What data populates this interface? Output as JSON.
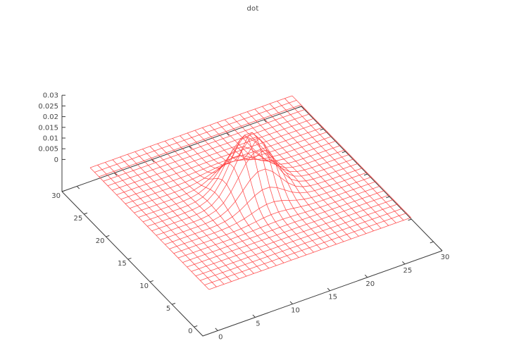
{
  "chart_data": {
    "type": "surface",
    "style": "wireframe-mesh",
    "title": "dot",
    "x_tick_labels": [
      "0",
      "5",
      "10",
      "15",
      "20",
      "25",
      "30"
    ],
    "x_tick_values": [
      0,
      5,
      10,
      15,
      20,
      25,
      30
    ],
    "y_tick_labels": [
      "0",
      "5",
      "10",
      "15",
      "20",
      "25",
      "30"
    ],
    "y_tick_values": [
      0,
      5,
      10,
      15,
      20,
      25,
      30
    ],
    "z_tick_labels": [
      "0",
      "0.005",
      "0.01",
      "0.015",
      "0.02",
      "0.025",
      "0.03"
    ],
    "z_tick_values": [
      0,
      0.005,
      0.01,
      0.015,
      0.02,
      0.025,
      0.03
    ],
    "xlim": [
      -2,
      30
    ],
    "ylim": [
      -2,
      30
    ],
    "zlim": [
      0,
      0.03
    ],
    "legend": null,
    "grid_on": false,
    "mesh_color": "#ff3b3b",
    "axis_color": "#3a3a3a",
    "label_color": "#464646",
    "surface": {
      "kind": "gaussian2d",
      "formula": "z(x,y) = peak * exp(-((x-cx)^2 + (y-cy)^2) / (2*sigma^2))",
      "cx": 13.5,
      "cy": 13.5,
      "sigma": 2.4,
      "peak": 0.0276,
      "flat_value": 0,
      "grid": {
        "x_start": 0,
        "x_end": 27,
        "y_start": 0,
        "y_end": 27,
        "step": 1
      }
    }
  }
}
